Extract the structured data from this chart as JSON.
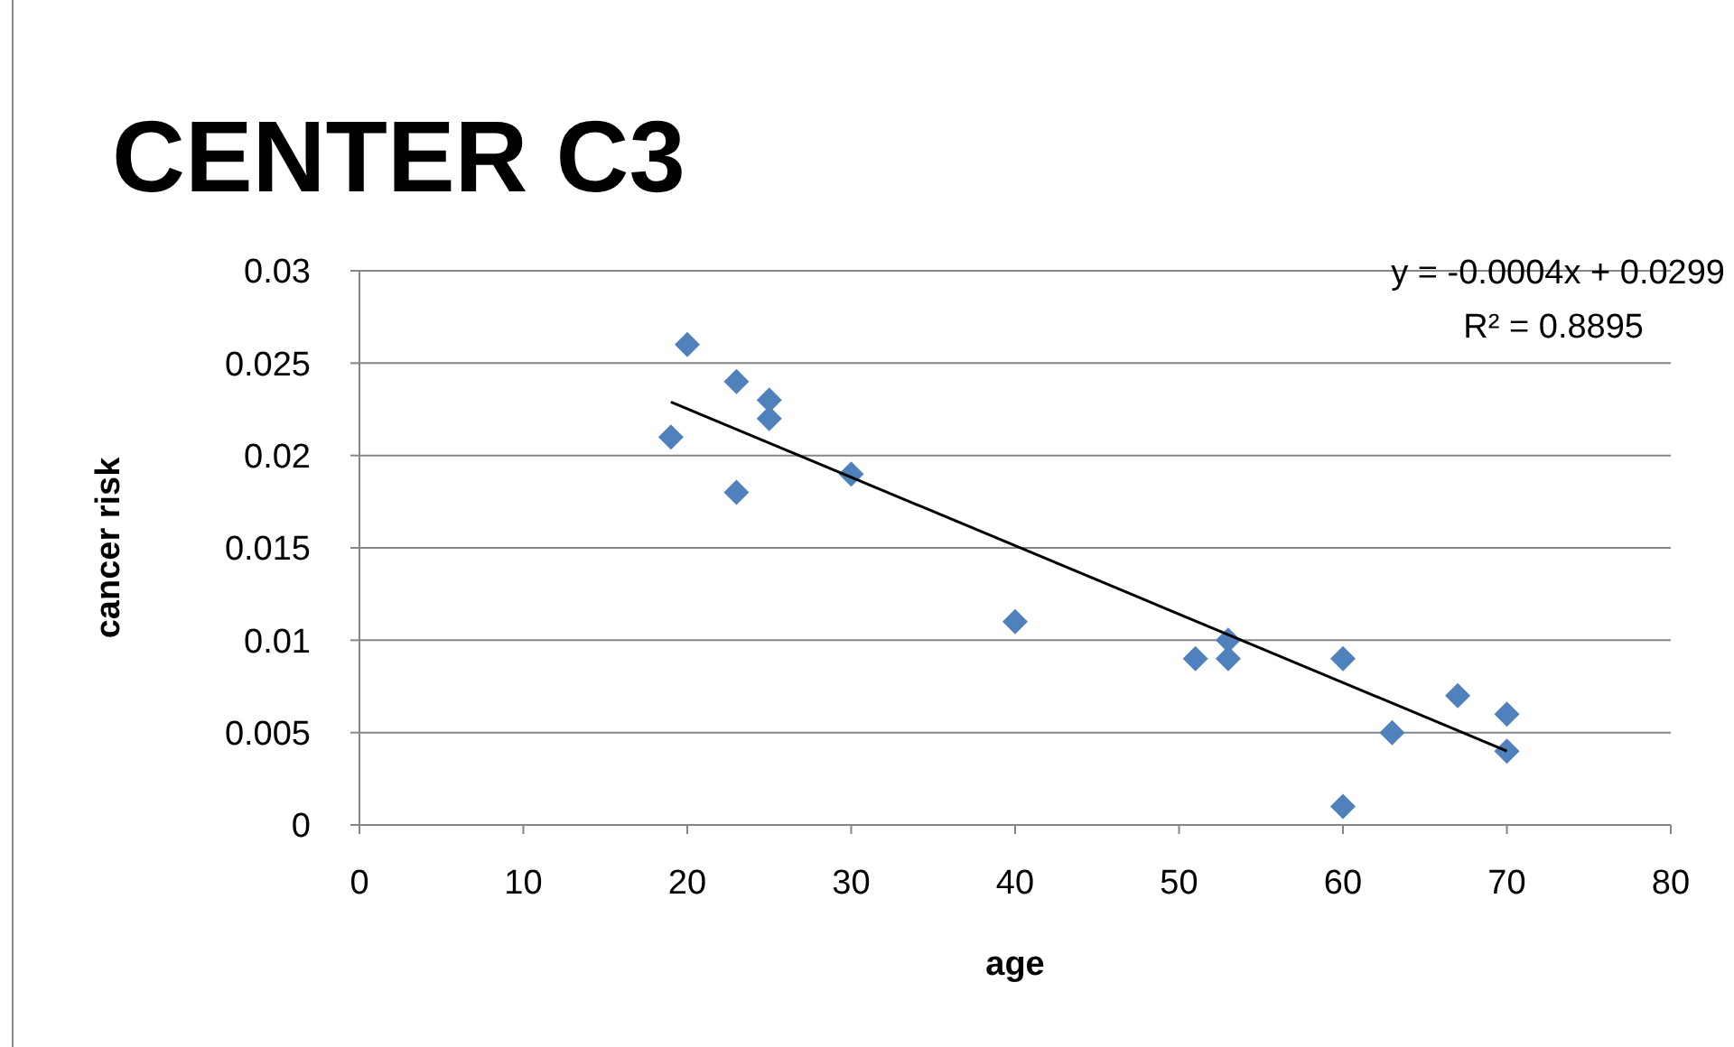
{
  "chart_data": {
    "type": "scatter",
    "title": "CENTER C3",
    "xlabel": "age",
    "ylabel": "cancer risk",
    "xlim": [
      0,
      80
    ],
    "xticks": [
      0,
      10,
      20,
      30,
      40,
      50,
      60,
      70,
      80
    ],
    "ylim": [
      0,
      0.03
    ],
    "yticks": [
      0,
      0.005,
      0.01,
      0.015,
      0.02,
      0.025,
      0.03
    ],
    "grid": "y",
    "annotations": [
      "y = -0.0004x + 0.0299",
      "R² = 0.8895"
    ],
    "series": [
      {
        "marker": "diamond",
        "color": "#4f81bd",
        "x": [
          19,
          20,
          23,
          23,
          25,
          25,
          30,
          40,
          51,
          53,
          53,
          60,
          60,
          63,
          67,
          70,
          70
        ],
        "values": [
          0.021,
          0.026,
          0.024,
          0.018,
          0.023,
          0.022,
          0.019,
          0.011,
          0.009,
          0.01,
          0.009,
          0.009,
          0.001,
          0.005,
          0.007,
          0.006,
          0.004
        ]
      },
      {
        "type": "line",
        "color": "#000000",
        "x": [
          19,
          70
        ],
        "values": [
          0.0229,
          0.004
        ]
      }
    ]
  }
}
